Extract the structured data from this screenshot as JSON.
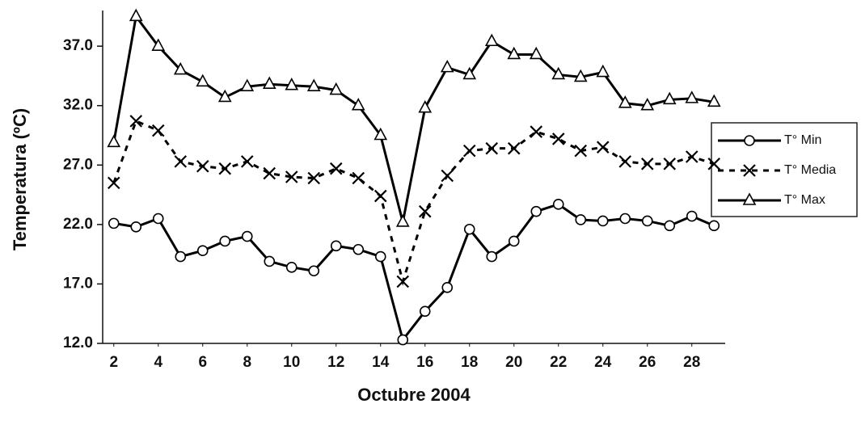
{
  "chart_data": {
    "type": "line",
    "x_label": "Octubre 2004",
    "y_label": "Temperatura (ºC)",
    "x": [
      2,
      3,
      4,
      5,
      6,
      7,
      8,
      9,
      10,
      11,
      12,
      13,
      14,
      15,
      16,
      17,
      18,
      19,
      20,
      21,
      22,
      23,
      24,
      25,
      26,
      27,
      28,
      29
    ],
    "xlim": [
      1.5,
      29.5
    ],
    "xticks": [
      2,
      4,
      6,
      8,
      10,
      12,
      14,
      16,
      18,
      20,
      22,
      24,
      26,
      28
    ],
    "ylim": [
      12,
      40
    ],
    "yticks": [
      {
        "value": 12,
        "label": "12.0"
      },
      {
        "value": 17,
        "label": "17.0"
      },
      {
        "value": 22,
        "label": "22.0"
      },
      {
        "value": 27,
        "label": "27.0"
      },
      {
        "value": 32,
        "label": "32.0"
      },
      {
        "value": 37,
        "label": "37.0"
      }
    ],
    "legend": "right",
    "series": [
      {
        "name": "T° Min",
        "color": "#000000",
        "line_style": "solid",
        "marker": "circle",
        "values": [
          22.1,
          21.8,
          22.5,
          19.3,
          19.8,
          20.6,
          21.0,
          18.9,
          18.4,
          18.1,
          20.2,
          19.9,
          19.3,
          12.3,
          14.7,
          16.7,
          21.6,
          19.3,
          20.6,
          23.1,
          23.7,
          22.4,
          22.3,
          22.5,
          22.3,
          21.9,
          22.7,
          21.9
        ]
      },
      {
        "name": "T° Media",
        "color": "#000000",
        "line_style": "dashed",
        "marker": "x",
        "values": [
          25.5,
          30.7,
          29.9,
          27.3,
          26.9,
          26.7,
          27.3,
          26.3,
          26.0,
          25.9,
          26.7,
          25.9,
          24.4,
          17.2,
          23.1,
          26.1,
          28.2,
          28.4,
          28.4,
          29.8,
          29.2,
          28.2,
          28.5,
          27.3,
          27.1,
          27.1,
          27.7,
          27.1
        ]
      },
      {
        "name": "T° Max",
        "color": "#000000",
        "line_style": "solid",
        "marker": "triangle",
        "values": [
          28.9,
          39.5,
          37.0,
          35.0,
          34.0,
          32.7,
          33.6,
          33.8,
          33.7,
          33.6,
          33.3,
          32.0,
          29.5,
          22.2,
          31.8,
          35.2,
          34.6,
          37.4,
          36.3,
          36.3,
          34.6,
          34.4,
          34.8,
          32.2,
          32.0,
          32.5,
          32.6,
          32.3
        ]
      }
    ]
  }
}
